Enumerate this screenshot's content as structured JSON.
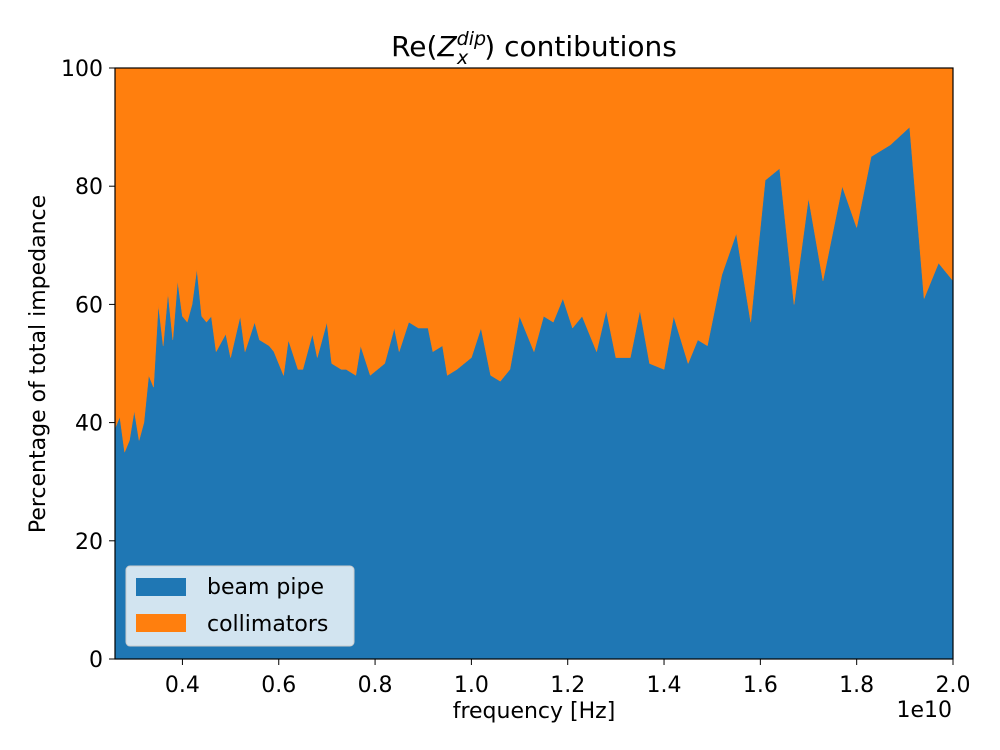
{
  "chart_data": {
    "type": "area",
    "stacked": true,
    "title_prefix": "Re(",
    "title_symbol": "Z",
    "title_sub": "x",
    "title_sup": "dip",
    "title_suffix": ") contibutions",
    "xlabel": "frequency [Hz]",
    "ylabel": "Percentage of total impedance",
    "x_offset_label": "1e10",
    "xlim": [
      0.26,
      2.0
    ],
    "ylim": [
      0,
      100
    ],
    "xticks": [
      "0.4",
      "0.6",
      "0.8",
      "1.0",
      "1.2",
      "1.4",
      "1.6",
      "1.8",
      "2.0"
    ],
    "xtick_values": [
      0.4,
      0.6,
      0.8,
      1.0,
      1.2,
      1.4,
      1.6,
      1.8,
      2.0
    ],
    "yticks": [
      "0",
      "20",
      "40",
      "60",
      "80",
      "100"
    ],
    "ytick_values": [
      0,
      20,
      40,
      60,
      80,
      100
    ],
    "legend_position": "lower-left",
    "x": [
      0.26,
      0.27,
      0.28,
      0.29,
      0.3,
      0.31,
      0.32,
      0.33,
      0.34,
      0.35,
      0.36,
      0.37,
      0.38,
      0.39,
      0.4,
      0.41,
      0.42,
      0.43,
      0.44,
      0.45,
      0.46,
      0.47,
      0.49,
      0.5,
      0.52,
      0.53,
      0.55,
      0.56,
      0.58,
      0.59,
      0.61,
      0.62,
      0.64,
      0.65,
      0.67,
      0.68,
      0.7,
      0.71,
      0.73,
      0.74,
      0.76,
      0.77,
      0.79,
      0.82,
      0.84,
      0.85,
      0.87,
      0.89,
      0.91,
      0.92,
      0.94,
      0.95,
      0.97,
      1.0,
      1.02,
      1.04,
      1.06,
      1.08,
      1.1,
      1.13,
      1.15,
      1.17,
      1.19,
      1.21,
      1.23,
      1.26,
      1.28,
      1.3,
      1.33,
      1.35,
      1.37,
      1.4,
      1.42,
      1.45,
      1.47,
      1.49,
      1.52,
      1.55,
      1.58,
      1.61,
      1.64,
      1.67,
      1.7,
      1.73,
      1.77,
      1.8,
      1.83,
      1.87,
      1.91,
      1.94,
      1.97,
      2.0
    ],
    "series": [
      {
        "name": "beam pipe",
        "color": "#1f77b4",
        "values": [
          39,
          41,
          35,
          37,
          42,
          37,
          40,
          48,
          46,
          60,
          53,
          62,
          54,
          64,
          58,
          57,
          60,
          66,
          58,
          57,
          58,
          52,
          55,
          51,
          58,
          52,
          57,
          54,
          53,
          52,
          48,
          54,
          49,
          49,
          55,
          51,
          57,
          50,
          49,
          49,
          48,
          53,
          48,
          50,
          56,
          52,
          57,
          56,
          56,
          52,
          53,
          48,
          49,
          51,
          56,
          48,
          47,
          49,
          58,
          52,
          58,
          57,
          61,
          56,
          58,
          52,
          59,
          51,
          51,
          59,
          50,
          49,
          58,
          50,
          54,
          53,
          65,
          72,
          57,
          81,
          83,
          60,
          78,
          64,
          80,
          73,
          85,
          87,
          90,
          61,
          67,
          64
        ]
      },
      {
        "name": "collimators",
        "color": "#ff7f0e",
        "values": [
          61,
          59,
          65,
          63,
          58,
          63,
          60,
          52,
          54,
          40,
          47,
          38,
          46,
          36,
          42,
          43,
          40,
          34,
          42,
          43,
          42,
          48,
          45,
          49,
          42,
          48,
          43,
          46,
          47,
          48,
          52,
          46,
          51,
          51,
          45,
          49,
          43,
          50,
          51,
          51,
          52,
          47,
          52,
          50,
          44,
          48,
          43,
          44,
          44,
          48,
          47,
          52,
          51,
          49,
          44,
          52,
          53,
          51,
          42,
          48,
          42,
          43,
          39,
          44,
          42,
          48,
          41,
          49,
          49,
          41,
          50,
          51,
          42,
          50,
          46,
          47,
          35,
          28,
          43,
          19,
          17,
          40,
          22,
          36,
          20,
          27,
          15,
          13,
          10,
          39,
          33,
          36
        ]
      }
    ]
  }
}
